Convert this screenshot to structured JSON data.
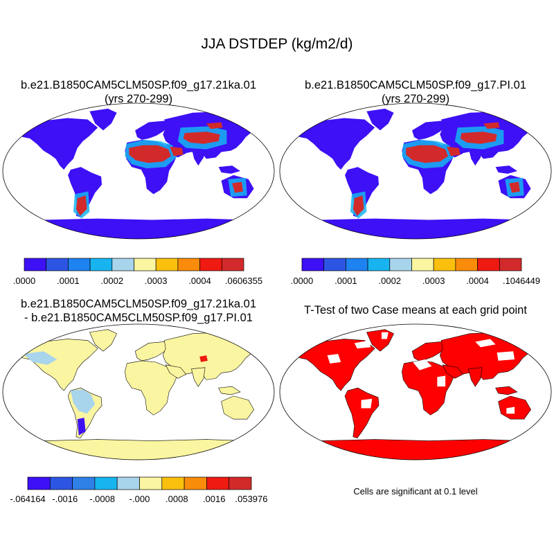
{
  "figure": {
    "title": "JJA DSTDEP (kg/m2/d)"
  },
  "panels": [
    {
      "id": "case1",
      "title_line1": "b.e21.B1850CAM5CLM50SP.f09_g17.21ka.01",
      "title_line2": "(yrs 270-299)",
      "colorbar": {
        "colors": [
          "#3d10f5",
          "#2d55e3",
          "#1e82f0",
          "#18b4f0",
          "#a8d4ec",
          "#faf5a0",
          "#fbc00e",
          "#f98c0a",
          "#ef1a12",
          "#d22a2a"
        ],
        "labels": [
          ".0000",
          ".0001",
          ".0002",
          ".0003",
          ".0004",
          ".0606355"
        ]
      }
    },
    {
      "id": "case2",
      "title_line1": "b.e21.B1850CAM5CLM50SP.f09_g17.PI.01",
      "title_line2": "(yrs 270-299)",
      "colorbar": {
        "colors": [
          "#3d10f5",
          "#2d55e3",
          "#1e82f0",
          "#18b4f0",
          "#a8d4ec",
          "#faf5a0",
          "#fbc00e",
          "#f98c0a",
          "#ef1a12",
          "#d22a2a"
        ],
        "labels": [
          ".0000",
          ".0001",
          ".0002",
          ".0003",
          ".0004",
          ".1046449"
        ]
      }
    },
    {
      "id": "difference",
      "title_line1": "b.e21.B1850CAM5CLM50SP.f09_g17.21ka.01",
      "title_line2": "- b.e21.B1850CAM5CLM50SP.f09_g17.PI.01",
      "colorbar": {
        "colors": [
          "#3d10f5",
          "#2d55e3",
          "#2f80e6",
          "#18b4f0",
          "#a8d4ec",
          "#faf5a0",
          "#fbc00e",
          "#f98c0a",
          "#ef1a12",
          "#d22a2a"
        ],
        "labels": [
          "-.064164",
          "-.0016",
          "-.0008",
          "-.000",
          ".0008",
          ".0016",
          ".053976"
        ]
      }
    },
    {
      "id": "ttest",
      "title_line1": "T-Test of two Case means at each grid point",
      "note": "Cells are significant at 0.1 level",
      "significant_color": "#ff0000"
    }
  ],
  "field_colors": {
    "ocean": "#ffffff",
    "low": "#3d10f5",
    "desert_core": "#d22a2a",
    "diff_neutral": "#faf5a0",
    "diff_minus": "#a8d4ec"
  }
}
